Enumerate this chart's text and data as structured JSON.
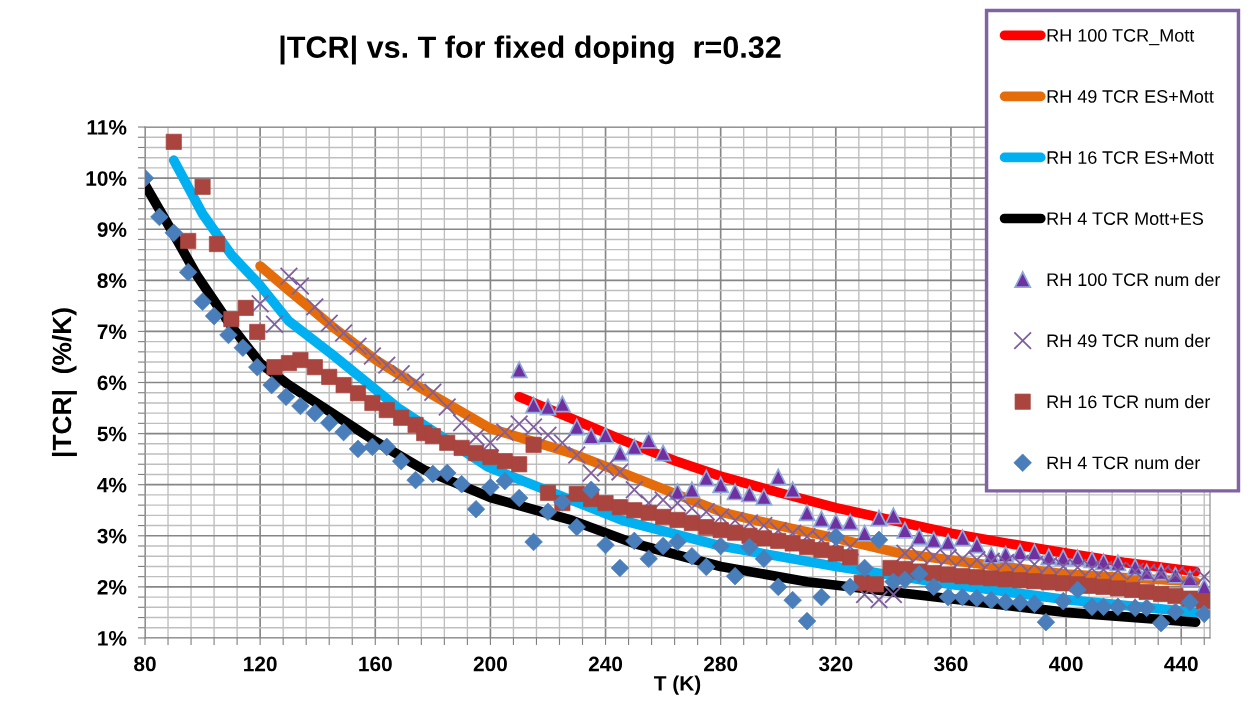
{
  "chart_data": {
    "type": "scatter",
    "title": "|TCR| vs. T for fixed doping  r=0.32",
    "xlabel": "T (K)",
    "ylabel": "|TCR|  (%/K)",
    "xlim": [
      80,
      450
    ],
    "ylim": [
      1,
      11
    ],
    "xticks": [
      80,
      {
        "value": 88,
        "label": null
      },
      {
        "value": 96,
        "label": null
      },
      {
        "value": 104,
        "label": null
      },
      {
        "value": 112,
        "label": null
      },
      120,
      {
        "value": 128,
        "label": null
      },
      {
        "value": 136,
        "label": null
      },
      {
        "value": 144,
        "label": null
      },
      {
        "value": 152,
        "label": null
      },
      160,
      {
        "value": 168,
        "label": null
      },
      {
        "value": 176,
        "label": null
      },
      {
        "value": 184,
        "label": null
      },
      {
        "value": 192,
        "label": null
      },
      200,
      {
        "value": 208,
        "label": null
      },
      {
        "value": 216,
        "label": null
      },
      {
        "value": 224,
        "label": null
      },
      {
        "value": 232,
        "label": null
      },
      240,
      {
        "value": 248,
        "label": null
      },
      {
        "value": 256,
        "label": null
      },
      {
        "value": 264,
        "label": null
      },
      {
        "value": 272,
        "label": null
      },
      280,
      {
        "value": 288,
        "label": null
      },
      {
        "value": 296,
        "label": null
      },
      {
        "value": 304,
        "label": null
      },
      {
        "value": 312,
        "label": null
      },
      320,
      {
        "value": 328,
        "label": null
      },
      {
        "value": 336,
        "label": null
      },
      {
        "value": 344,
        "label": null
      },
      {
        "value": 352,
        "label": null
      },
      360,
      {
        "value": 368,
        "label": null
      },
      {
        "value": 376,
        "label": null
      },
      {
        "value": 384,
        "label": null
      },
      {
        "value": 392,
        "label": null
      },
      400,
      {
        "value": 408,
        "label": null
      },
      {
        "value": 416,
        "label": null
      },
      {
        "value": 424,
        "label": null
      },
      {
        "value": 432,
        "label": null
      },
      440,
      {
        "value": 448,
        "label": null
      }
    ],
    "yticks": [
      {
        "value": 1,
        "label": "1%"
      },
      {
        "value": 1.2,
        "label": null
      },
      {
        "value": 1.4,
        "label": null
      },
      {
        "value": 1.6,
        "label": null
      },
      {
        "value": 1.8,
        "label": null
      },
      {
        "value": 2,
        "label": "2%"
      },
      {
        "value": 2.2,
        "label": null
      },
      {
        "value": 2.4,
        "label": null
      },
      {
        "value": 2.6,
        "label": null
      },
      {
        "value": 2.8,
        "label": null
      },
      {
        "value": 3,
        "label": "3%"
      },
      {
        "value": 3.2,
        "label": null
      },
      {
        "value": 3.4,
        "label": null
      },
      {
        "value": 3.6,
        "label": null
      },
      {
        "value": 3.8,
        "label": null
      },
      {
        "value": 4,
        "label": "4%"
      },
      {
        "value": 4.2,
        "label": null
      },
      {
        "value": 4.4,
        "label": null
      },
      {
        "value": 4.6,
        "label": null
      },
      {
        "value": 4.8,
        "label": null
      },
      {
        "value": 5,
        "label": "5%"
      },
      {
        "value": 5.2,
        "label": null
      },
      {
        "value": 5.4,
        "label": null
      },
      {
        "value": 5.6,
        "label": null
      },
      {
        "value": 5.8,
        "label": null
      },
      {
        "value": 6,
        "label": "6%"
      },
      {
        "value": 6.2,
        "label": null
      },
      {
        "value": 6.4,
        "label": null
      },
      {
        "value": 6.6,
        "label": null
      },
      {
        "value": 6.8,
        "label": null
      },
      {
        "value": 7,
        "label": "7%"
      },
      {
        "value": 7.2,
        "label": null
      },
      {
        "value": 7.4,
        "label": null
      },
      {
        "value": 7.6,
        "label": null
      },
      {
        "value": 7.8,
        "label": null
      },
      {
        "value": 8,
        "label": "8%"
      },
      {
        "value": 8.2,
        "label": null
      },
      {
        "value": 8.4,
        "label": null
      },
      {
        "value": 8.6,
        "label": null
      },
      {
        "value": 8.8,
        "label": null
      },
      {
        "value": 9,
        "label": "9%"
      },
      {
        "value": 9.2,
        "label": null
      },
      {
        "value": 9.4,
        "label": null
      },
      {
        "value": 9.6,
        "label": null
      },
      {
        "value": 9.8,
        "label": null
      },
      {
        "value": 10,
        "label": "10%"
      },
      {
        "value": 10.2,
        "label": null
      },
      {
        "value": 10.4,
        "label": null
      },
      {
        "value": 10.6,
        "label": null
      },
      {
        "value": 10.8,
        "label": null
      },
      {
        "value": 11,
        "label": "11%"
      }
    ],
    "grid": true,
    "legend": "top right",
    "series": [
      {
        "name": "RH 100 TCR_Mott",
        "type": "line",
        "marker": "none",
        "color": "#ff0000",
        "x": [
          210,
          228,
          246,
          265,
          281,
          300,
          320,
          340,
          360,
          380,
          400,
          420,
          445
        ],
        "values": [
          5.72,
          5.3,
          4.87,
          4.45,
          4.15,
          3.85,
          3.55,
          3.3,
          3.05,
          2.85,
          2.66,
          2.48,
          2.3
        ]
      },
      {
        "name": "RH 49 TCR ES+Mott",
        "type": "line",
        "marker": "none",
        "color": "#e46c0a",
        "x": [
          120,
          130,
          145,
          160,
          177,
          200,
          228,
          246,
          281,
          300,
          320,
          343,
          370,
          400,
          445
        ],
        "values": [
          8.28,
          7.8,
          7.1,
          6.45,
          5.85,
          5.1,
          4.62,
          4.23,
          3.45,
          3.2,
          2.95,
          2.65,
          2.45,
          2.25,
          2.1
        ]
      },
      {
        "name": "RH 16 TCR ES+Mott",
        "type": "line",
        "marker": "none",
        "color": "#00b0f0",
        "x": [
          90,
          100,
          110,
          120,
          130,
          145,
          168,
          199,
          246,
          280,
          320,
          360,
          400,
          445
        ],
        "values": [
          10.35,
          9.3,
          8.5,
          7.9,
          7.2,
          6.55,
          5.5,
          4.35,
          3.3,
          2.8,
          2.4,
          2.05,
          1.75,
          1.5
        ]
      },
      {
        "name": "RH 4 TCR Mott+ES",
        "type": "line",
        "marker": "none",
        "color": "#000000",
        "x": [
          80,
          90,
          98,
          110,
          120,
          130,
          145,
          160,
          177,
          200,
          228,
          250,
          280,
          310,
          343,
          370,
          400,
          445
        ],
        "values": [
          9.87,
          8.9,
          8.1,
          7.1,
          6.38,
          5.95,
          5.4,
          4.85,
          4.29,
          3.75,
          3.31,
          2.85,
          2.4,
          2.1,
          1.88,
          1.7,
          1.5,
          1.31
        ]
      },
      {
        "name": "RH 100 TCR num der",
        "marker": "triangle",
        "color": "#7030a0",
        "x": [
          210,
          215,
          220,
          225,
          230,
          235,
          240,
          245,
          250,
          255,
          260,
          265,
          270,
          275,
          280,
          285,
          290,
          295,
          300,
          305,
          310,
          315,
          320,
          325,
          330,
          335,
          340,
          344,
          349,
          354,
          359,
          364,
          369,
          374,
          379,
          384,
          389,
          394,
          399,
          404,
          409,
          413,
          418,
          424,
          428,
          433,
          438,
          443,
          448
        ],
        "values": [
          6.25,
          5.56,
          5.52,
          5.58,
          5.13,
          4.95,
          4.97,
          4.62,
          4.74,
          4.87,
          4.62,
          3.86,
          3.9,
          4.13,
          4.0,
          3.86,
          3.82,
          3.76,
          4.15,
          3.9,
          3.45,
          3.33,
          3.27,
          3.27,
          3.05,
          3.35,
          3.39,
          3.11,
          2.98,
          2.92,
          2.88,
          2.96,
          2.82,
          2.62,
          2.64,
          2.68,
          2.68,
          2.59,
          2.57,
          2.57,
          2.53,
          2.49,
          2.47,
          2.39,
          2.29,
          2.29,
          2.23,
          2.17,
          2.0
        ]
      },
      {
        "name": "RH 49 TCR num der",
        "marker": "cross",
        "color": "#7f5fa0",
        "x": [
          120,
          125,
          130,
          134,
          139,
          144,
          149,
          154,
          159,
          164,
          169,
          174,
          180,
          185,
          190,
          195,
          200,
          205,
          210,
          215,
          220,
          225,
          230,
          235,
          240,
          245,
          250,
          255,
          260,
          265,
          270,
          275,
          280,
          285,
          290,
          295,
          300,
          305,
          310,
          315,
          320,
          325,
          330,
          335,
          340,
          344,
          349,
          354,
          359,
          364,
          369,
          374,
          379,
          384,
          389,
          394,
          399,
          404,
          409,
          413,
          418,
          424,
          428,
          433,
          438,
          443,
          448
        ],
        "values": [
          7.54,
          7.14,
          8.08,
          7.89,
          7.48,
          7.16,
          6.97,
          6.71,
          6.52,
          6.34,
          6.17,
          6.01,
          5.81,
          5.52,
          5.21,
          4.93,
          4.82,
          5.03,
          5.19,
          5.13,
          4.97,
          4.82,
          4.58,
          4.23,
          4.33,
          4.25,
          3.9,
          3.64,
          3.7,
          3.64,
          3.54,
          3.47,
          3.37,
          3.3,
          3.25,
          3.2,
          3.1,
          3.05,
          2.98,
          2.92,
          2.85,
          2.78,
          1.85,
          1.75,
          1.85,
          2.66,
          2.62,
          2.6,
          2.57,
          2.55,
          2.53,
          2.5,
          2.48,
          2.46,
          2.44,
          2.42,
          2.4,
          2.38,
          2.36,
          2.34,
          2.32,
          2.3,
          2.28,
          2.26,
          2.24,
          2.22,
          2.2
        ]
      },
      {
        "name": "RH 16 TCR num der",
        "marker": "square",
        "color": "#a9443f",
        "x": [
          90,
          95,
          100,
          105,
          110,
          115,
          119,
          125,
          130,
          134,
          139,
          144,
          149,
          154,
          159,
          164,
          169,
          174,
          177,
          180,
          185,
          190,
          195,
          200,
          205,
          210,
          215,
          220,
          225,
          230,
          235,
          240,
          245,
          250,
          255,
          260,
          265,
          270,
          275,
          280,
          285,
          290,
          295,
          300,
          305,
          310,
          315,
          320,
          325,
          329,
          334,
          339,
          344,
          349,
          354,
          359,
          364,
          369,
          374,
          379,
          384,
          389,
          394,
          399,
          404,
          408,
          413,
          418,
          423,
          428,
          433,
          438,
          443,
          448
        ],
        "values": [
          10.71,
          8.77,
          9.83,
          8.71,
          7.24,
          7.46,
          6.99,
          6.3,
          6.38,
          6.44,
          6.3,
          6.11,
          5.95,
          5.79,
          5.6,
          5.46,
          5.31,
          5.17,
          5.01,
          4.95,
          4.82,
          4.72,
          4.62,
          4.54,
          4.46,
          4.4,
          4.78,
          3.84,
          3.64,
          3.82,
          3.72,
          3.64,
          3.56,
          3.5,
          3.45,
          3.37,
          3.31,
          3.25,
          3.17,
          3.11,
          3.06,
          3.0,
          2.95,
          2.9,
          2.85,
          2.78,
          2.72,
          2.65,
          2.58,
          2.08,
          2.05,
          2.37,
          2.35,
          2.3,
          2.27,
          2.24,
          2.21,
          2.19,
          2.17,
          2.15,
          2.13,
          2.11,
          2.09,
          2.07,
          2.05,
          2.02,
          2.0,
          1.97,
          1.94,
          1.9,
          1.86,
          1.82,
          1.77,
          1.72
        ]
      },
      {
        "name": "RH 4 TCR num der",
        "marker": "diamond",
        "color": "#4a7ebb",
        "x": [
          80,
          85,
          90,
          95,
          100,
          104,
          109,
          114,
          119,
          124,
          129,
          134,
          139,
          144,
          149,
          154,
          159,
          164,
          169,
          174,
          180,
          185,
          190,
          195,
          200,
          205,
          210,
          215,
          220,
          225,
          230,
          235,
          240,
          245,
          250,
          255,
          260,
          265,
          270,
          275,
          280,
          285,
          290,
          295,
          300,
          305,
          310,
          315,
          320,
          325,
          330,
          335,
          340,
          344,
          349,
          354,
          359,
          364,
          369,
          374,
          379,
          384,
          389,
          393,
          399,
          404,
          409,
          413,
          418,
          424,
          428,
          433,
          438,
          443,
          448
        ],
        "values": [
          10.0,
          9.24,
          8.93,
          8.16,
          7.58,
          7.3,
          6.93,
          6.68,
          6.3,
          5.95,
          5.72,
          5.54,
          5.4,
          5.21,
          5.03,
          4.7,
          4.74,
          4.74,
          4.46,
          4.09,
          4.21,
          4.23,
          4.01,
          3.52,
          3.95,
          4.07,
          3.74,
          2.88,
          3.47,
          3.66,
          3.17,
          3.9,
          2.82,
          2.37,
          2.9,
          2.55,
          2.8,
          2.88,
          2.6,
          2.39,
          2.8,
          2.21,
          2.78,
          2.55,
          2.0,
          1.74,
          1.33,
          1.8,
          2.98,
          2.0,
          2.37,
          2.92,
          2.1,
          2.14,
          2.25,
          2.0,
          1.8,
          1.8,
          1.78,
          1.74,
          1.7,
          1.69,
          1.67,
          1.31,
          1.72,
          1.94,
          1.61,
          1.61,
          1.61,
          1.59,
          1.59,
          1.29,
          1.51,
          1.7,
          1.47
        ]
      }
    ]
  }
}
